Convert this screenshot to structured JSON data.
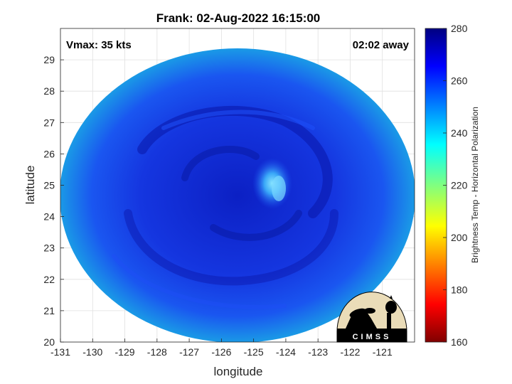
{
  "title": "Frank: 02-Aug-2022 16:15:00",
  "annotations": {
    "vmax": "Vmax: 35 kts",
    "time_away": "02:02 away"
  },
  "axes": {
    "xlabel": "longitude",
    "ylabel": "latitude",
    "xlim": [
      -131,
      -120
    ],
    "ylim": [
      20,
      30
    ],
    "xticks": [
      "-131",
      "-130",
      "-129",
      "-128",
      "-127",
      "-126",
      "-125",
      "-124",
      "-123",
      "-122",
      "-121"
    ],
    "yticks": [
      "20",
      "21",
      "22",
      "23",
      "24",
      "25",
      "26",
      "27",
      "28",
      "29"
    ],
    "grid": true
  },
  "colorbar": {
    "label": "Brightness Temp - Horizontal Polarization",
    "range": [
      160,
      280
    ],
    "ticks": [
      "160",
      "180",
      "200",
      "220",
      "240",
      "260",
      "280"
    ],
    "colormap": "jet"
  },
  "logo": {
    "text": "CIMSS"
  },
  "colors": {
    "scene_deep": "#0a1cb8",
    "scene_mid": "#1a3ee8",
    "scene_edge": "#1a8ee8",
    "eye_bright": "#6ad8ff",
    "logo_sun": "#eadcb8"
  }
}
